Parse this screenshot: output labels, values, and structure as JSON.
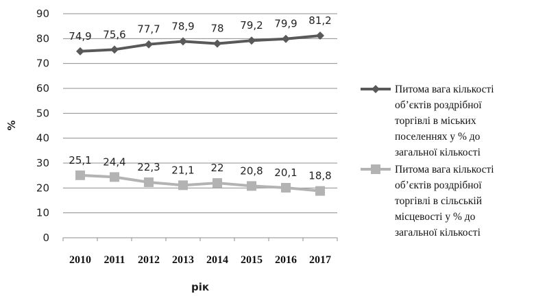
{
  "chart_data": {
    "type": "line",
    "x": [
      "2010",
      "2011",
      "2012",
      "2013",
      "2014",
      "2015",
      "2016",
      "2017"
    ],
    "xlabel": "рік",
    "ylabel": "%",
    "ylim": [
      0,
      90
    ],
    "yticks": [
      "0",
      "10",
      "20",
      "30",
      "40",
      "50",
      "60",
      "70",
      "80",
      "90"
    ],
    "grid": true,
    "legend_position": "right",
    "series": [
      {
        "name": "Питома вага кількості об’єктів роздрібної торгівлі в міських поселеннях у % до загальної кількості",
        "legend_lines": [
          "Питома вага кількості",
          "об’єктів роздрібної",
          "торгівлі в міських",
          "поселеннях у % до",
          "загальної кількості"
        ],
        "values": [
          74.9,
          75.6,
          77.7,
          78.9,
          78,
          79.2,
          79.9,
          81.2
        ],
        "labels": [
          "74,9",
          "75,6",
          "77,7",
          "78,9",
          "78",
          "79,2",
          "79,9",
          "81,2"
        ],
        "color": "#595959",
        "marker": "diamond"
      },
      {
        "name": "Питома вага кількості об’єктів роздрібної торгівлі в сільській місцевості у % до загальної кількості",
        "legend_lines": [
          "Питома вага кількості",
          "об’єктів роздрібної",
          "торгівлі в сільській",
          "місцевості у % до",
          "загальної кількості"
        ],
        "values": [
          25.1,
          24.4,
          22.3,
          21.1,
          22,
          20.8,
          20.1,
          18.8
        ],
        "labels": [
          "25,1",
          "24,4",
          "22,3",
          "21,1",
          "22",
          "20,8",
          "20,1",
          "18,8"
        ],
        "color": "#b3b3b3",
        "marker": "square"
      }
    ]
  }
}
